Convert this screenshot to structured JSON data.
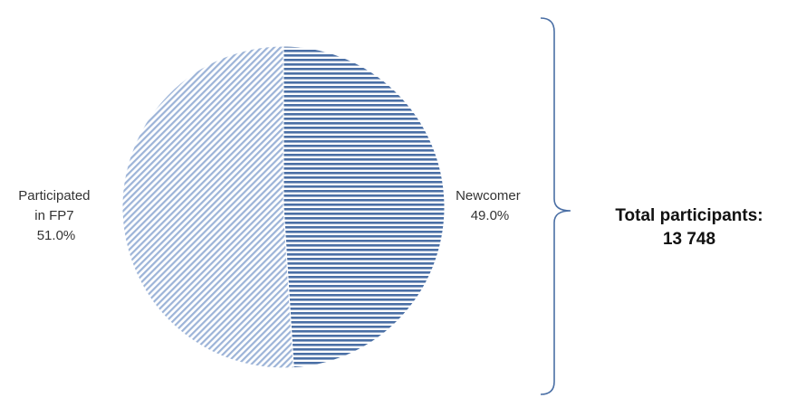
{
  "chart_data": {
    "type": "pie",
    "slices": [
      {
        "label_lines": [
          "Newcomer"
        ],
        "percent_text": "49.0%",
        "value": 49.0,
        "pattern": "horizontal-lines",
        "color": "#4a6fa5"
      },
      {
        "label_lines": [
          "Participated",
          "in FP7"
        ],
        "percent_text": "51.0%",
        "value": 51.0,
        "pattern": "diagonal-lines",
        "color": "#8fa8d0"
      }
    ],
    "annotation": {
      "lines": [
        "Total participants:",
        "13 748"
      ],
      "bracket_color": "#4a6fa5"
    }
  }
}
